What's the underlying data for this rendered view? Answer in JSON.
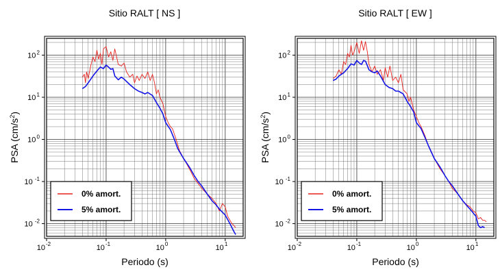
{
  "chart_data": [
    {
      "type": "line",
      "title": "Sitio RALT [ NS ]",
      "xlabel": "Periodo (s)",
      "ylabel": "PSA (cm/s²)",
      "ylabel_base": "PSA (cm/s",
      "ylabel_sup": "2",
      "ylabel_tail": ")",
      "x_scale": "log",
      "y_scale": "log",
      "xlim": [
        0.01,
        20
      ],
      "ylim": [
        0.005,
        250
      ],
      "grid": true,
      "legend": "bottom-left",
      "x_ticks": [
        {
          "base": "10",
          "exp": "-2"
        },
        {
          "base": "10",
          "exp": "-1"
        },
        {
          "base": "10",
          "exp": "0"
        },
        {
          "base": "10",
          "exp": "1"
        }
      ],
      "y_ticks": [
        {
          "base": "10",
          "exp": "-2"
        },
        {
          "base": "10",
          "exp": "-1"
        },
        {
          "base": "10",
          "exp": "0"
        },
        {
          "base": "10",
          "exp": "1"
        },
        {
          "base": "10",
          "exp": "2"
        }
      ],
      "series": [
        {
          "name": "0% amort.",
          "color": "#e8201c",
          "points": [
            [
              0.04,
              30
            ],
            [
              0.043,
              35
            ],
            [
              0.045,
              22
            ],
            [
              0.047,
              40
            ],
            [
              0.05,
              28
            ],
            [
              0.055,
              55
            ],
            [
              0.06,
              90
            ],
            [
              0.065,
              70
            ],
            [
              0.07,
              130
            ],
            [
              0.075,
              80
            ],
            [
              0.08,
              110
            ],
            [
              0.085,
              60
            ],
            [
              0.09,
              140
            ],
            [
              0.1,
              160
            ],
            [
              0.11,
              90
            ],
            [
              0.12,
              120
            ],
            [
              0.13,
              75
            ],
            [
              0.14,
              140
            ],
            [
              0.15,
              90
            ],
            [
              0.16,
              60
            ],
            [
              0.18,
              55
            ],
            [
              0.2,
              65
            ],
            [
              0.22,
              40
            ],
            [
              0.25,
              30
            ],
            [
              0.28,
              35
            ],
            [
              0.3,
              22
            ],
            [
              0.33,
              32
            ],
            [
              0.36,
              25
            ],
            [
              0.4,
              35
            ],
            [
              0.45,
              28
            ],
            [
              0.5,
              40
            ],
            [
              0.55,
              25
            ],
            [
              0.6,
              35
            ],
            [
              0.65,
              22
            ],
            [
              0.7,
              12
            ],
            [
              0.75,
              15
            ],
            [
              0.8,
              10
            ],
            [
              0.9,
              7
            ],
            [
              1.0,
              3.5
            ],
            [
              1.1,
              2.5
            ],
            [
              1.2,
              2.0
            ],
            [
              1.3,
              1.8
            ],
            [
              1.5,
              1.0
            ],
            [
              1.7,
              0.55
            ],
            [
              2.0,
              0.35
            ],
            [
              2.3,
              0.25
            ],
            [
              2.6,
              0.18
            ],
            [
              3.0,
              0.12
            ],
            [
              3.5,
              0.09
            ],
            [
              4.0,
              0.07
            ],
            [
              5.0,
              0.05
            ],
            [
              6.0,
              0.04
            ],
            [
              7.0,
              0.03
            ],
            [
              8.0,
              0.02
            ],
            [
              9.0,
              0.03
            ],
            [
              10.0,
              0.025
            ],
            [
              11.0,
              0.015
            ],
            [
              12.0,
              0.012
            ],
            [
              13.0,
              0.01
            ],
            [
              14.0,
              0.009
            ],
            [
              15.0,
              0.008
            ]
          ]
        },
        {
          "name": "5% amort.",
          "color": "#1414e6",
          "points": [
            [
              0.04,
              16
            ],
            [
              0.045,
              18
            ],
            [
              0.05,
              22
            ],
            [
              0.06,
              32
            ],
            [
              0.07,
              42
            ],
            [
              0.08,
              52
            ],
            [
              0.09,
              48
            ],
            [
              0.1,
              58
            ],
            [
              0.11,
              52
            ],
            [
              0.12,
              46
            ],
            [
              0.13,
              48
            ],
            [
              0.14,
              32
            ],
            [
              0.16,
              26
            ],
            [
              0.18,
              30
            ],
            [
              0.2,
              27
            ],
            [
              0.25,
              20
            ],
            [
              0.3,
              16
            ],
            [
              0.35,
              14
            ],
            [
              0.4,
              13
            ],
            [
              0.45,
              12
            ],
            [
              0.5,
              13
            ],
            [
              0.6,
              11
            ],
            [
              0.7,
              7.5
            ],
            [
              0.8,
              5.5
            ],
            [
              0.9,
              4.0
            ],
            [
              1.0,
              2.5
            ],
            [
              1.2,
              1.7
            ],
            [
              1.4,
              1.0
            ],
            [
              1.6,
              0.6
            ],
            [
              2.0,
              0.35
            ],
            [
              2.5,
              0.22
            ],
            [
              3.0,
              0.14
            ],
            [
              3.5,
              0.1
            ],
            [
              4.0,
              0.08
            ],
            [
              5.0,
              0.05
            ],
            [
              6.0,
              0.035
            ],
            [
              7.0,
              0.028
            ],
            [
              8.0,
              0.022
            ],
            [
              10.0,
              0.016
            ],
            [
              12.0,
              0.01
            ],
            [
              14.0,
              0.0065
            ],
            [
              15.0,
              0.0055
            ]
          ]
        }
      ]
    },
    {
      "type": "line",
      "title": "Sitio RALT [ EW ]",
      "xlabel": "Periodo (s)",
      "ylabel": "PSA (cm/s²)",
      "ylabel_base": "PSA (cm/s",
      "ylabel_sup": "2",
      "ylabel_tail": ")",
      "x_scale": "log",
      "y_scale": "log",
      "xlim": [
        0.01,
        20
      ],
      "ylim": [
        0.005,
        250
      ],
      "grid": true,
      "legend": "bottom-left",
      "x_ticks": [
        {
          "base": "10",
          "exp": "-2"
        },
        {
          "base": "10",
          "exp": "-1"
        },
        {
          "base": "10",
          "exp": "0"
        },
        {
          "base": "10",
          "exp": "1"
        }
      ],
      "y_ticks": [
        {
          "base": "10",
          "exp": "-2"
        },
        {
          "base": "10",
          "exp": "-1"
        },
        {
          "base": "10",
          "exp": "0"
        },
        {
          "base": "10",
          "exp": "1"
        },
        {
          "base": "10",
          "exp": "2"
        }
      ],
      "series": [
        {
          "name": "0% amort.",
          "color": "#e8201c",
          "points": [
            [
              0.04,
              28
            ],
            [
              0.045,
              32
            ],
            [
              0.05,
              45
            ],
            [
              0.055,
              35
            ],
            [
              0.06,
              70
            ],
            [
              0.065,
              60
            ],
            [
              0.07,
              110
            ],
            [
              0.075,
              90
            ],
            [
              0.08,
              170
            ],
            [
              0.085,
              100
            ],
            [
              0.09,
              120
            ],
            [
              0.1,
              200
            ],
            [
              0.11,
              110
            ],
            [
              0.12,
              220
            ],
            [
              0.13,
              130
            ],
            [
              0.14,
              210
            ],
            [
              0.15,
              120
            ],
            [
              0.16,
              60
            ],
            [
              0.18,
              40
            ],
            [
              0.2,
              55
            ],
            [
              0.22,
              35
            ],
            [
              0.25,
              45
            ],
            [
              0.28,
              25
            ],
            [
              0.3,
              50
            ],
            [
              0.33,
              30
            ],
            [
              0.36,
              55
            ],
            [
              0.4,
              25
            ],
            [
              0.45,
              30
            ],
            [
              0.5,
              22
            ],
            [
              0.55,
              35
            ],
            [
              0.6,
              15
            ],
            [
              0.7,
              12
            ],
            [
              0.75,
              8
            ],
            [
              0.8,
              10
            ],
            [
              0.9,
              5
            ],
            [
              1.0,
              3.5
            ],
            [
              1.1,
              2.5
            ],
            [
              1.2,
              2.0
            ],
            [
              1.4,
              1.2
            ],
            [
              1.6,
              0.7
            ],
            [
              1.8,
              0.5
            ],
            [
              2.0,
              0.35
            ],
            [
              2.5,
              0.2
            ],
            [
              3.0,
              0.14
            ],
            [
              3.5,
              0.1
            ],
            [
              4.0,
              0.07
            ],
            [
              5.0,
              0.05
            ],
            [
              6.0,
              0.035
            ],
            [
              7.0,
              0.028
            ],
            [
              8.0,
              0.025
            ],
            [
              9.0,
              0.02
            ],
            [
              10.0,
              0.018
            ],
            [
              11.0,
              0.013
            ],
            [
              12.0,
              0.014
            ],
            [
              13.0,
              0.012
            ],
            [
              14.0,
              0.012
            ],
            [
              15.0,
              0.011
            ]
          ]
        },
        {
          "name": "5% amort.",
          "color": "#1414e6",
          "points": [
            [
              0.04,
              25
            ],
            [
              0.045,
              27
            ],
            [
              0.05,
              32
            ],
            [
              0.06,
              38
            ],
            [
              0.07,
              48
            ],
            [
              0.08,
              62
            ],
            [
              0.09,
              58
            ],
            [
              0.1,
              75
            ],
            [
              0.11,
              65
            ],
            [
              0.12,
              60
            ],
            [
              0.13,
              75
            ],
            [
              0.14,
              72
            ],
            [
              0.16,
              45
            ],
            [
              0.18,
              40
            ],
            [
              0.2,
              38
            ],
            [
              0.22,
              42
            ],
            [
              0.25,
              32
            ],
            [
              0.3,
              20
            ],
            [
              0.35,
              17
            ],
            [
              0.4,
              16
            ],
            [
              0.45,
              14
            ],
            [
              0.5,
              14
            ],
            [
              0.6,
              12
            ],
            [
              0.7,
              8
            ],
            [
              0.8,
              6
            ],
            [
              0.9,
              4.5
            ],
            [
              1.0,
              2.5
            ],
            [
              1.2,
              1.8
            ],
            [
              1.4,
              1.1
            ],
            [
              1.6,
              0.7
            ],
            [
              2.0,
              0.35
            ],
            [
              2.5,
              0.22
            ],
            [
              3.0,
              0.14
            ],
            [
              3.5,
              0.1
            ],
            [
              4.0,
              0.08
            ],
            [
              5.0,
              0.05
            ],
            [
              6.0,
              0.035
            ],
            [
              7.0,
              0.027
            ],
            [
              8.0,
              0.022
            ],
            [
              10.0,
              0.015
            ],
            [
              11.0,
              0.009
            ],
            [
              12.0,
              0.008
            ],
            [
              13.0,
              0.0085
            ],
            [
              14.0,
              0.008
            ]
          ]
        }
      ]
    }
  ]
}
